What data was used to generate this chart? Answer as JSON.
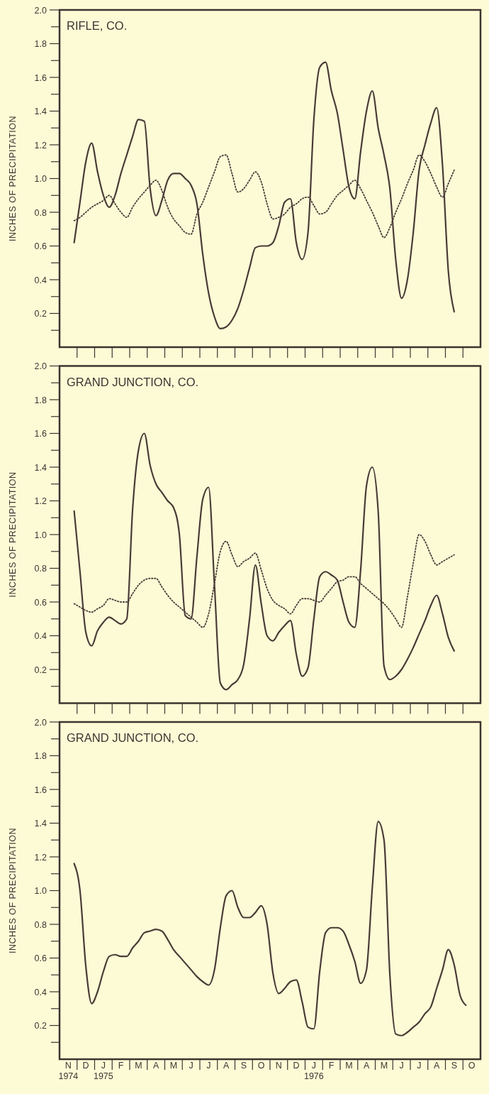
{
  "chart_data": [
    {
      "type": "line",
      "title": "RIFLE, CO.",
      "ylabel": "INCHES OF PRECIPITATION",
      "tick_labels": "y",
      "categories": [
        null,
        null,
        null,
        null,
        null,
        null,
        null,
        null,
        null,
        null,
        null,
        null,
        null,
        null,
        null,
        null,
        null,
        null,
        null,
        null,
        null,
        null,
        null,
        null,
        null,
        null,
        null,
        null,
        null,
        null,
        null,
        null,
        null,
        null,
        null,
        null,
        null,
        null,
        null,
        null,
        null,
        null,
        null,
        null,
        null,
        null,
        null,
        null,
        null,
        null,
        null,
        null,
        null,
        null,
        null,
        null,
        null,
        null,
        null,
        null,
        null,
        null,
        null,
        null,
        null,
        null,
        null,
        null,
        null,
        null,
        null,
        null
      ],
      "ylim": [
        0,
        2
      ],
      "yticks": [
        {
          "value": 0.1,
          "label": null
        },
        0.2,
        {
          "value": 0.3,
          "label": null
        },
        0.4,
        {
          "value": 0.5,
          "label": null
        },
        0.6,
        {
          "value": 0.7,
          "label": null
        },
        0.8,
        {
          "value": 0.9,
          "label": null
        },
        {
          "value": 1,
          "label": "1.0"
        },
        {
          "value": 1.1,
          "label": null
        },
        1.2,
        {
          "value": 1.3,
          "label": null
        },
        1.4,
        {
          "value": 1.5,
          "label": null
        },
        1.6,
        {
          "value": 1.7,
          "label": null
        },
        1.8,
        {
          "value": 1.9,
          "label": null
        },
        {
          "value": 2,
          "label": "2.0"
        }
      ],
      "series": [
        {
          "color": "#4a3b37",
          "line_style": "solid",
          "values": [
            null,
            null,
            0.62,
            0.86,
            1.1,
            1.21,
            1.04,
            0.9,
            0.83,
            0.9,
            1.03,
            1.14,
            1.25,
            1.35,
            1.34,
            0.94,
            0.78,
            0.87,
            0.99,
            1.03,
            1.03,
            1.0,
            0.96,
            0.85,
            0.55,
            0.32,
            0.18,
            0.11,
            0.12,
            0.16,
            0.23,
            0.34,
            0.47,
            0.59,
            0.6,
            0.6,
            0.62,
            0.72,
            0.86,
            0.88,
            0.62,
            0.52,
            0.68,
            1.35,
            1.66,
            1.69,
            1.52,
            1.39,
            1.17,
            0.95,
            0.88,
            1.16,
            1.4,
            1.52,
            1.3,
            1.14,
            0.94,
            0.52,
            0.29,
            0.4,
            0.68,
            1.05,
            1.2,
            1.33,
            1.42,
            1.08,
            0.45,
            0.21,
            null,
            null,
            null,
            null
          ]
        },
        {
          "color": "#4a3b37",
          "line_style": "dotted",
          "values": [
            null,
            null,
            0.75,
            0.77,
            0.8,
            0.83,
            0.85,
            0.87,
            0.9,
            0.85,
            0.8,
            0.77,
            0.83,
            0.88,
            0.92,
            0.96,
            0.99,
            0.93,
            0.83,
            0.76,
            0.72,
            0.68,
            0.67,
            0.79,
            0.86,
            0.95,
            1.04,
            1.13,
            1.14,
            1.03,
            0.92,
            0.94,
            0.99,
            1.04,
            0.98,
            0.85,
            0.76,
            0.77,
            0.79,
            0.83,
            0.85,
            0.88,
            0.89,
            0.84,
            0.79,
            0.8,
            0.85,
            0.9,
            0.93,
            0.96,
            0.99,
            0.94,
            0.87,
            0.8,
            0.72,
            0.65,
            0.71,
            0.8,
            0.88,
            0.97,
            1.05,
            1.14,
            1.1,
            1.03,
            0.95,
            0.89,
            0.97,
            1.05,
            null,
            null,
            null,
            null
          ]
        }
      ]
    },
    {
      "type": "line",
      "title": "GRAND JUNCTION, CO.",
      "ylabel": "INCHES OF PRECIPITATION",
      "tick_labels": "y",
      "categories": [
        null,
        null,
        null,
        null,
        null,
        null,
        null,
        null,
        null,
        null,
        null,
        null,
        null,
        null,
        null,
        null,
        null,
        null,
        null,
        null,
        null,
        null,
        null,
        null,
        null,
        null,
        null,
        null,
        null,
        null,
        null,
        null,
        null,
        null,
        null,
        null,
        null,
        null,
        null,
        null,
        null,
        null,
        null,
        null,
        null,
        null,
        null,
        null,
        null,
        null,
        null,
        null,
        null,
        null,
        null,
        null,
        null,
        null,
        null,
        null,
        null,
        null,
        null,
        null,
        null,
        null,
        null,
        null,
        null,
        null,
        null,
        null
      ],
      "ylim": [
        0,
        2
      ],
      "yticks": [
        {
          "value": 0.1,
          "label": null
        },
        0.2,
        {
          "value": 0.3,
          "label": null
        },
        0.4,
        {
          "value": 0.5,
          "label": null
        },
        0.6,
        {
          "value": 0.7,
          "label": null
        },
        0.8,
        {
          "value": 0.9,
          "label": null
        },
        {
          "value": 1,
          "label": "1.0"
        },
        {
          "value": 1.1,
          "label": null
        },
        1.2,
        {
          "value": 1.3,
          "label": null
        },
        1.4,
        {
          "value": 1.5,
          "label": null
        },
        1.6,
        {
          "value": 1.7,
          "label": null
        },
        1.8,
        {
          "value": 1.9,
          "label": null
        },
        {
          "value": 2,
          "label": "2.0"
        }
      ],
      "series": [
        {
          "color": "#4a3b37",
          "line_style": "solid",
          "values": [
            null,
            null,
            1.14,
            0.78,
            0.42,
            0.34,
            0.43,
            0.48,
            0.51,
            0.49,
            0.47,
            0.5,
            1.15,
            1.5,
            1.6,
            1.41,
            1.3,
            1.25,
            1.2,
            1.16,
            1.0,
            0.52,
            0.5,
            0.87,
            1.21,
            1.28,
            0.7,
            0.12,
            0.08,
            0.11,
            0.14,
            0.23,
            0.5,
            0.82,
            0.59,
            0.4,
            0.37,
            0.42,
            0.46,
            0.49,
            0.29,
            0.16,
            0.21,
            0.5,
            0.75,
            0.78,
            0.76,
            0.73,
            0.6,
            0.48,
            0.45,
            0.79,
            1.29,
            1.4,
            1.14,
            0.22,
            0.14,
            0.16,
            0.2,
            0.26,
            0.33,
            0.41,
            0.49,
            0.58,
            0.64,
            0.53,
            0.39,
            0.31,
            null,
            null,
            null,
            null
          ]
        },
        {
          "color": "#4a3b37",
          "line_style": "dotted",
          "values": [
            null,
            null,
            0.59,
            0.57,
            0.55,
            0.54,
            0.56,
            0.58,
            0.62,
            0.61,
            0.6,
            0.6,
            0.65,
            0.7,
            0.73,
            0.74,
            0.74,
            0.69,
            0.64,
            0.6,
            0.57,
            0.54,
            0.51,
            0.48,
            0.45,
            0.53,
            0.71,
            0.9,
            0.96,
            0.88,
            0.81,
            0.84,
            0.86,
            0.89,
            0.79,
            0.68,
            0.61,
            0.58,
            0.56,
            0.53,
            0.58,
            0.62,
            0.62,
            0.61,
            0.6,
            0.64,
            0.68,
            0.72,
            0.73,
            0.75,
            0.75,
            0.71,
            0.68,
            0.65,
            0.62,
            0.59,
            0.55,
            0.5,
            0.45,
            0.63,
            0.83,
            1.0,
            0.96,
            0.88,
            0.82,
            0.84,
            0.86,
            0.88,
            null,
            null,
            null,
            null
          ]
        }
      ]
    },
    {
      "type": "line",
      "title": "GRAND JUNCTION, CO.",
      "ylabel": "INCHES OF PRECIPITATION",
      "categories": [
        null,
        "N 1974",
        null,
        null,
        "D",
        null,
        null,
        "J 1975",
        null,
        null,
        "F",
        null,
        null,
        "M",
        null,
        null,
        "A",
        null,
        null,
        "M",
        null,
        null,
        "J",
        null,
        null,
        "J",
        null,
        null,
        "A",
        null,
        null,
        "S",
        null,
        null,
        "O",
        null,
        null,
        "N",
        null,
        null,
        "D",
        null,
        null,
        "J 1976",
        null,
        null,
        "F",
        null,
        null,
        "M",
        null,
        null,
        "A",
        null,
        null,
        "M",
        null,
        null,
        "J",
        null,
        null,
        "J",
        null,
        null,
        "A",
        null,
        null,
        "S",
        null,
        null,
        "O",
        null
      ],
      "ylim": [
        0,
        2
      ],
      "yticks": [
        {
          "value": 0.1,
          "label": null
        },
        0.2,
        {
          "value": 0.3,
          "label": null
        },
        0.4,
        {
          "value": 0.5,
          "label": null
        },
        0.6,
        {
          "value": 0.7,
          "label": null
        },
        0.8,
        {
          "value": 0.9,
          "label": null
        },
        {
          "value": 1,
          "label": "1.0"
        },
        {
          "value": 1.1,
          "label": null
        },
        1.2,
        {
          "value": 1.3,
          "label": null
        },
        1.4,
        {
          "value": 1.5,
          "label": null
        },
        1.6,
        {
          "value": 1.7,
          "label": null
        },
        1.8,
        {
          "value": 1.9,
          "label": null
        },
        {
          "value": 2,
          "label": "2.0"
        }
      ],
      "series": [
        {
          "color": "#4a3b37",
          "line_style": "solid",
          "values": [
            null,
            null,
            1.16,
            1.0,
            0.55,
            0.33,
            0.4,
            0.52,
            0.61,
            0.62,
            0.61,
            0.61,
            0.66,
            0.7,
            0.75,
            0.76,
            0.77,
            0.76,
            0.71,
            0.65,
            0.61,
            0.57,
            0.53,
            0.49,
            0.46,
            0.44,
            0.53,
            0.78,
            0.97,
            1.0,
            0.9,
            0.84,
            0.84,
            0.87,
            0.91,
            0.8,
            0.51,
            0.39,
            0.42,
            0.46,
            0.47,
            0.34,
            0.19,
            0.18,
            0.52,
            0.75,
            0.78,
            0.78,
            0.76,
            0.68,
            0.58,
            0.45,
            0.53,
            1.02,
            1.41,
            1.3,
            0.5,
            0.15,
            0.14,
            0.16,
            0.19,
            0.22,
            0.27,
            0.31,
            0.42,
            0.53,
            0.65,
            0.56,
            0.38,
            0.32,
            null,
            null
          ]
        }
      ]
    }
  ]
}
